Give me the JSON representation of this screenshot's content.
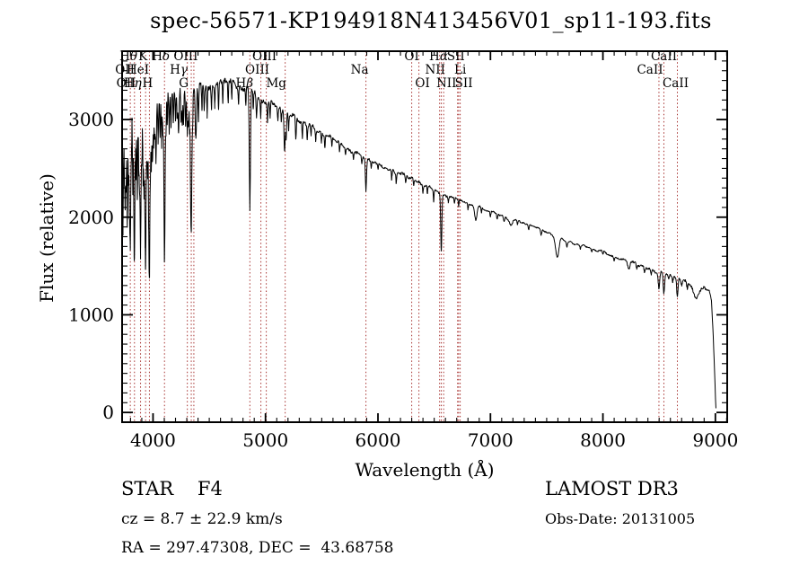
{
  "title": "spec-56571-KP194918N413456V01_sp11-193.fits",
  "footer": {
    "class_line": "STAR    F4",
    "cz_line": "cz = 8.7 ± 22.9 km/s",
    "radec_line": "RA = 297.47308, DEC =  43.68758",
    "survey": "LAMOST DR3",
    "obsdate_line": "Obs-Date: 20131005"
  },
  "colors": {
    "background": "#ffffff",
    "spectrum": "#000000",
    "line_marker": "#a83432",
    "axis": "#000000",
    "text": "#000000"
  },
  "chart_data": {
    "type": "line",
    "title": "spec-56571-KP194918N413456V01_sp11-193.fits",
    "xlabel": "Wavelength (Å)",
    "ylabel": "Flux (relative)",
    "xlim": [
      3725,
      9105
    ],
    "ylim": [
      -100,
      3700
    ],
    "xticks": [
      4000,
      5000,
      6000,
      7000,
      8000,
      9000
    ],
    "yticks": [
      0,
      1000,
      2000,
      3000
    ],
    "x_minor_step": 100,
    "y_minor_step": 100,
    "grid": false,
    "legend": "none",
    "spectral_lines": [
      {
        "label": "Hθ",
        "wavelength": 3798,
        "row": 1,
        "dx": -2
      },
      {
        "label": "K",
        "wavelength": 3934,
        "row": 1,
        "dx": -3
      },
      {
        "label": "Hδ",
        "wavelength": 4102,
        "row": 1,
        "dx": -4
      },
      {
        "label": "OIII",
        "wavelength": 4363,
        "row": 1,
        "dx": -9
      },
      {
        "label": "OIII",
        "wavelength": 5007,
        "row": 1,
        "dx": -2
      },
      {
        "label": "OI",
        "wavelength": 6300,
        "row": 1,
        "dx": 0
      },
      {
        "label": "Hα",
        "wavelength": 6563,
        "row": 1,
        "dx": -3
      },
      {
        "label": "SII",
        "wavelength": 6717,
        "row": 1,
        "dx": -3
      },
      {
        "label": "CaII",
        "wavelength": 8542,
        "row": 1,
        "dx": 0
      },
      {
        "label": "OII",
        "wavelength": 3726,
        "row": 2,
        "dx": 3
      },
      {
        "label": "HeI",
        "wavelength": 3889,
        "row": 2,
        "dx": -3
      },
      {
        "label": "Hγ",
        "wavelength": 4340,
        "row": 2,
        "dx": -14
      },
      {
        "label": "OIII",
        "wavelength": 4959,
        "row": 2,
        "dx": -4
      },
      {
        "label": "Na",
        "wavelength": 5893,
        "row": 2,
        "dx": -7
      },
      {
        "label": "NII",
        "wavelength": 6548,
        "row": 2,
        "dx": -5
      },
      {
        "label": "Li",
        "wavelength": 6708,
        "row": 2,
        "dx": 3
      },
      {
        "label": "CaII",
        "wavelength": 8498,
        "row": 2,
        "dx": -10
      },
      {
        "label": "OII",
        "wavelength": 3729,
        "row": 3,
        "dx": 4
      },
      {
        "label": "Hη",
        "wavelength": 3835,
        "row": 3,
        "dx": -2
      },
      {
        "label": "H",
        "wavelength": 3968,
        "row": 3,
        "dx": -2
      },
      {
        "label": "G",
        "wavelength": 4305,
        "row": 3,
        "dx": -4
      },
      {
        "label": "Hβ",
        "wavelength": 4861,
        "row": 3,
        "dx": -6
      },
      {
        "label": "Mg",
        "wavelength": 5175,
        "row": 3,
        "dx": -10
      },
      {
        "label": "OI",
        "wavelength": 6364,
        "row": 3,
        "dx": 4
      },
      {
        "label": "NII",
        "wavelength": 6584,
        "row": 3,
        "dx": 3
      },
      {
        "label": "SII",
        "wavelength": 6731,
        "row": 3,
        "dx": 4
      },
      {
        "label": "CaII",
        "wavelength": 8662,
        "row": 3,
        "dx": -2
      }
    ],
    "series": [
      {
        "name": "spectrum",
        "seed": 20131005,
        "continuum_points": [
          [
            3725,
            2500
          ],
          [
            3740,
            2950
          ],
          [
            3800,
            3020
          ],
          [
            3900,
            3060
          ],
          [
            4000,
            3160
          ],
          [
            4100,
            3230
          ],
          [
            4200,
            3270
          ],
          [
            4300,
            3300
          ],
          [
            4400,
            3320
          ],
          [
            4500,
            3340
          ],
          [
            4650,
            3370
          ],
          [
            4800,
            3330
          ],
          [
            4900,
            3260
          ],
          [
            5000,
            3180
          ],
          [
            5100,
            3120
          ],
          [
            5200,
            3060
          ],
          [
            5300,
            3000
          ],
          [
            5400,
            2940
          ],
          [
            5500,
            2870
          ],
          [
            5600,
            2800
          ],
          [
            5700,
            2730
          ],
          [
            5800,
            2660
          ],
          [
            5900,
            2590
          ],
          [
            6000,
            2540
          ],
          [
            6100,
            2490
          ],
          [
            6200,
            2440
          ],
          [
            6300,
            2390
          ],
          [
            6400,
            2330
          ],
          [
            6500,
            2280
          ],
          [
            6600,
            2230
          ],
          [
            6700,
            2180
          ],
          [
            6800,
            2140
          ],
          [
            6900,
            2100
          ],
          [
            7000,
            2060
          ],
          [
            7100,
            2020
          ],
          [
            7200,
            1980
          ],
          [
            7300,
            1940
          ],
          [
            7400,
            1900
          ],
          [
            7500,
            1850
          ],
          [
            7600,
            1790
          ],
          [
            7700,
            1750
          ],
          [
            7800,
            1710
          ],
          [
            7900,
            1680
          ],
          [
            8000,
            1650
          ],
          [
            8100,
            1600
          ],
          [
            8200,
            1560
          ],
          [
            8300,
            1520
          ],
          [
            8400,
            1480
          ],
          [
            8500,
            1440
          ],
          [
            8600,
            1400
          ],
          [
            8700,
            1360
          ],
          [
            8770,
            1330
          ],
          [
            8800,
            1250
          ],
          [
            8830,
            1170
          ],
          [
            8860,
            1230
          ],
          [
            8900,
            1290
          ],
          [
            8945,
            1270
          ],
          [
            8965,
            1150
          ],
          [
            8980,
            800
          ],
          [
            8995,
            350
          ],
          [
            9003,
            60
          ],
          [
            9008,
            25
          ]
        ],
        "noise_amplitude_points": [
          [
            3725,
            125
          ],
          [
            3800,
            135
          ],
          [
            3900,
            135
          ],
          [
            4000,
            110
          ],
          [
            4100,
            90
          ],
          [
            4250,
            70
          ],
          [
            4400,
            58
          ],
          [
            4600,
            50
          ],
          [
            4800,
            45
          ],
          [
            5000,
            40
          ],
          [
            5300,
            33
          ],
          [
            5600,
            28
          ],
          [
            6000,
            25
          ],
          [
            6400,
            22
          ],
          [
            6800,
            18
          ],
          [
            7200,
            16
          ],
          [
            7600,
            16
          ],
          [
            8000,
            16
          ],
          [
            8300,
            20
          ],
          [
            8600,
            24
          ],
          [
            8800,
            30
          ],
          [
            8950,
            25
          ],
          [
            9008,
            15
          ]
        ],
        "absorption_dips": [
          [
            3733,
            900,
            3
          ],
          [
            3745,
            500,
            3
          ],
          [
            3752,
            800,
            3
          ],
          [
            3760,
            650,
            3
          ],
          [
            3771,
            1000,
            3
          ],
          [
            3782,
            550,
            3
          ],
          [
            3790,
            750,
            3
          ],
          [
            3798,
            1250,
            4
          ],
          [
            3808,
            450,
            3
          ],
          [
            3820,
            850,
            3
          ],
          [
            3829,
            600,
            3
          ],
          [
            3835,
            1450,
            4
          ],
          [
            3848,
            650,
            3
          ],
          [
            3860,
            950,
            3
          ],
          [
            3873,
            550,
            3
          ],
          [
            3880,
            700,
            3
          ],
          [
            3889,
            1450,
            4
          ],
          [
            3900,
            500,
            3
          ],
          [
            3912,
            650,
            3
          ],
          [
            3920,
            800,
            3
          ],
          [
            3927,
            600,
            3
          ],
          [
            3934,
            1650,
            4
          ],
          [
            3944,
            500,
            3
          ],
          [
            3952,
            700,
            3
          ],
          [
            3961,
            800,
            3
          ],
          [
            3968,
            1650,
            4
          ],
          [
            3977,
            500,
            3
          ],
          [
            3985,
            600,
            3
          ],
          [
            3995,
            550,
            3
          ],
          [
            4005,
            450,
            3
          ],
          [
            4015,
            400,
            3
          ],
          [
            4026,
            650,
            4
          ],
          [
            4045,
            400,
            3
          ],
          [
            4063,
            350,
            3
          ],
          [
            4077,
            450,
            3
          ],
          [
            4088,
            350,
            3
          ],
          [
            4102,
            1700,
            5
          ],
          [
            4115,
            350,
            3
          ],
          [
            4126,
            300,
            3
          ],
          [
            4144,
            400,
            3
          ],
          [
            4160,
            300,
            3
          ],
          [
            4180,
            320,
            3
          ],
          [
            4200,
            280,
            3
          ],
          [
            4215,
            300,
            3
          ],
          [
            4227,
            450,
            4
          ],
          [
            4250,
            300,
            3
          ],
          [
            4260,
            330,
            3
          ],
          [
            4271,
            350,
            3
          ],
          [
            4290,
            320,
            3
          ],
          [
            4305,
            420,
            4
          ],
          [
            4315,
            320,
            3
          ],
          [
            4325,
            380,
            3
          ],
          [
            4333,
            400,
            3
          ],
          [
            4340,
            1450,
            5
          ],
          [
            4352,
            300,
            3
          ],
          [
            4376,
            300,
            3
          ],
          [
            4383,
            450,
            4
          ],
          [
            4404,
            350,
            3
          ],
          [
            4435,
            250,
            3
          ],
          [
            4455,
            240,
            3
          ],
          [
            4481,
            280,
            3
          ],
          [
            4520,
            230,
            3
          ],
          [
            4549,
            230,
            3
          ],
          [
            4583,
            280,
            3
          ],
          [
            4620,
            210,
            3
          ],
          [
            4668,
            230,
            3
          ],
          [
            4700,
            180,
            3
          ],
          [
            4760,
            170,
            3
          ],
          [
            4825,
            170,
            3
          ],
          [
            4861,
            1230,
            5
          ],
          [
            4891,
            180,
            3
          ],
          [
            4920,
            220,
            4
          ],
          [
            4957,
            170,
            3
          ],
          [
            5018,
            180,
            3
          ],
          [
            5041,
            170,
            3
          ],
          [
            5110,
            130,
            3
          ],
          [
            5140,
            140,
            3
          ],
          [
            5167,
            220,
            4
          ],
          [
            5172,
            240,
            4
          ],
          [
            5183,
            250,
            4
          ],
          [
            5206,
            160,
            3
          ],
          [
            5270,
            220,
            4
          ],
          [
            5328,
            160,
            3
          ],
          [
            5371,
            150,
            3
          ],
          [
            5405,
            130,
            3
          ],
          [
            5446,
            120,
            3
          ],
          [
            5497,
            110,
            3
          ],
          [
            5528,
            130,
            3
          ],
          [
            5590,
            100,
            3
          ],
          [
            5658,
            90,
            3
          ],
          [
            5711,
            80,
            3
          ],
          [
            5782,
            80,
            3
          ],
          [
            5857,
            90,
            3
          ],
          [
            5893,
            330,
            5
          ],
          [
            5940,
            70,
            3
          ],
          [
            6000,
            70,
            3
          ],
          [
            6122,
            110,
            3
          ],
          [
            6162,
            100,
            3
          ],
          [
            6246,
            80,
            3
          ],
          [
            6318,
            70,
            3
          ],
          [
            6400,
            70,
            3
          ],
          [
            6439,
            80,
            3
          ],
          [
            6495,
            120,
            3
          ],
          [
            6563,
            590,
            5
          ],
          [
            6625,
            60,
            3
          ],
          [
            6680,
            60,
            3
          ],
          [
            6717,
            70,
            3
          ],
          [
            6800,
            60,
            3
          ],
          [
            6870,
            140,
            10
          ],
          [
            6920,
            50,
            3
          ],
          [
            7000,
            50,
            3
          ],
          [
            7060,
            50,
            4
          ],
          [
            7120,
            60,
            6
          ],
          [
            7180,
            80,
            14
          ],
          [
            7240,
            50,
            4
          ],
          [
            7340,
            50,
            4
          ],
          [
            7450,
            60,
            5
          ],
          [
            7594,
            200,
            14
          ],
          [
            7680,
            60,
            5
          ],
          [
            7800,
            40,
            4
          ],
          [
            7900,
            40,
            4
          ],
          [
            8000,
            40,
            4
          ],
          [
            8100,
            40,
            4
          ],
          [
            8230,
            70,
            10
          ],
          [
            8300,
            50,
            4
          ],
          [
            8370,
            50,
            4
          ],
          [
            8430,
            60,
            4
          ],
          [
            8498,
            170,
            6
          ],
          [
            8542,
            210,
            6
          ],
          [
            8585,
            60,
            4
          ],
          [
            8620,
            60,
            4
          ],
          [
            8662,
            200,
            6
          ],
          [
            8700,
            60,
            4
          ],
          [
            8750,
            70,
            5
          ]
        ]
      }
    ]
  }
}
